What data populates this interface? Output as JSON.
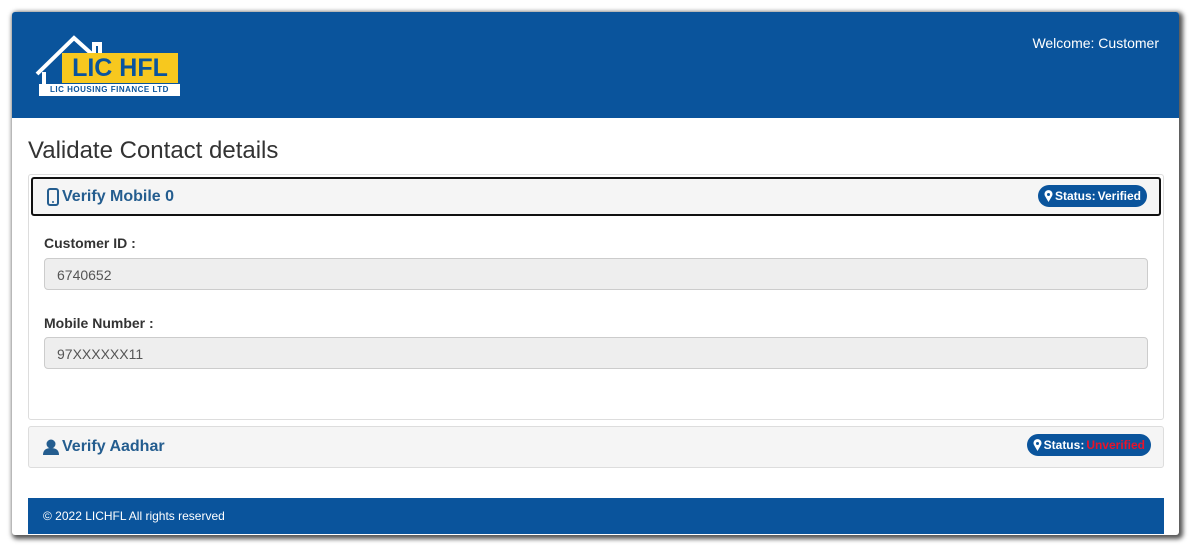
{
  "header": {
    "logo_text": "LIC HFL",
    "logo_subtitle": "LIC HOUSING FINANCE LTD",
    "welcome": "Welcome: Customer"
  },
  "title": "Validate Contact details",
  "panels": [
    {
      "title": "Verify Mobile 0",
      "status_label": "Status:",
      "status": "Verified",
      "fields": [
        {
          "label": "Customer ID :",
          "value": "6740652"
        },
        {
          "label": "Mobile Number :",
          "value": "97XXXXXX11"
        }
      ]
    },
    {
      "title": "Verify Aadhar",
      "status_label": "Status:",
      "status": "Unverified"
    }
  ],
  "footer": "© 2022 LICHFL All rights reserved"
}
